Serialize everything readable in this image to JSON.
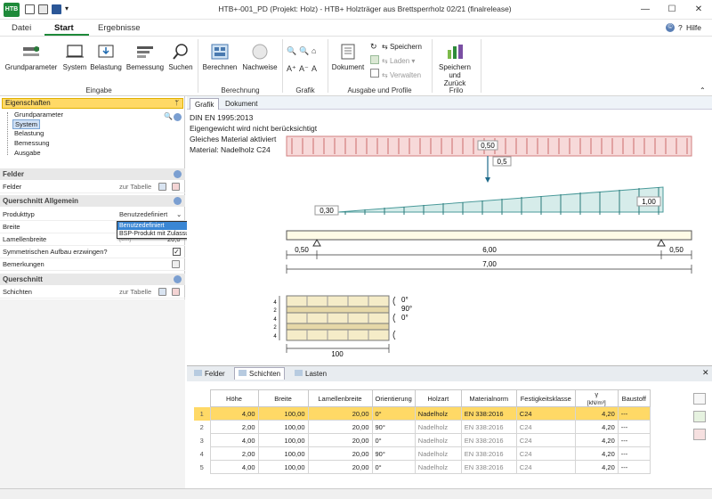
{
  "window": {
    "title": "HTB+-001_PD (Projekt: Holz) - HTB+ Holzträger aus Brettsperrholz 02/21 (finalrelease)",
    "app_logo": "HTB"
  },
  "menu": {
    "tabs": [
      "Datei",
      "Start",
      "Ergebnisse"
    ],
    "help": "Hilfe"
  },
  "ribbon": {
    "buttons": [
      "Grundparameter",
      "System",
      "Belastung",
      "Bemessung",
      "Suchen",
      "Berechnen",
      "Nachweise",
      "Dokument",
      "Speichern",
      "Laden",
      "Verwalten",
      "Speichern und Zurück"
    ],
    "groups": [
      "Eingabe",
      "Berechnung",
      "Grafik",
      "Ausgabe und Profile",
      "Frilo"
    ]
  },
  "left": {
    "header": "Eigenschaften",
    "tree": [
      "Grundparameter",
      "System",
      "Belastung",
      "Bemessung",
      "Ausgabe"
    ],
    "sections": {
      "felder": "Felder",
      "felder_row": "Felder",
      "felder_val": "zur Tabelle",
      "qa": "Querschnitt Allgemein",
      "produkttyp": "Produkttyp",
      "produkttyp_val": "Benutzedefiniert",
      "dropdown": [
        "Benutzedefiniert",
        "BSP-Produkt mit Zulassung"
      ],
      "breite": "Breite",
      "lamellenbreite": "Lamellenbreite",
      "lamellen_val": "20,0",
      "lamellen_unit": "[cm]",
      "sym": "Symmetrischen Aufbau erzwingen?",
      "bemerkungen": "Bemerkungen",
      "qs": "Querschnitt",
      "schichten": "Schichten",
      "schichten_val": "zur Tabelle"
    }
  },
  "right": {
    "tabs": [
      "Grafik",
      "Dokument"
    ],
    "info": [
      "DIN EN 1995:2013",
      "Eigengewicht wird nicht berücksichtigt",
      "Gleiches Material aktiviert",
      "Material: Nadelholz C24"
    ],
    "loads": {
      "top": "0,50",
      "point": "0,5",
      "trap_left": "0,30",
      "trap_right": "1,00"
    },
    "dims": {
      "left": "0,50",
      "mid": "6,00",
      "right": "0,50",
      "total": "7,00",
      "cs_width": "100"
    },
    "angles": [
      "0°",
      "90°",
      "0°"
    ],
    "side": [
      "4",
      "2",
      "4",
      "2",
      "4"
    ]
  },
  "bottom": {
    "tabs": [
      "Felder",
      "Schichten",
      "Lasten"
    ],
    "headers": [
      "Höhe",
      "Breite",
      "Lamellenbreite",
      "Orientierung",
      "Holzart",
      "Materialnorm",
      "Festigkeitsklasse",
      "γ",
      "Baustoff"
    ],
    "unit_gamma": "[kN/m³]",
    "rows": [
      {
        "n": "1",
        "h": "4,00",
        "b": "100,00",
        "l": "20,00",
        "o": "0°",
        "holz": "Nadelholz",
        "norm": "EN 338:2016",
        "fk": "C24",
        "g": "4,20",
        "bs": "---"
      },
      {
        "n": "2",
        "h": "2,00",
        "b": "100,00",
        "l": "20,00",
        "o": "90°",
        "holz": "Nadelholz",
        "norm": "EN 338:2016",
        "fk": "C24",
        "g": "4,20",
        "bs": "---"
      },
      {
        "n": "3",
        "h": "4,00",
        "b": "100,00",
        "l": "20,00",
        "o": "0°",
        "holz": "Nadelholz",
        "norm": "EN 338:2016",
        "fk": "C24",
        "g": "4,20",
        "bs": "---"
      },
      {
        "n": "4",
        "h": "2,00",
        "b": "100,00",
        "l": "20,00",
        "o": "90°",
        "holz": "Nadelholz",
        "norm": "EN 338:2016",
        "fk": "C24",
        "g": "4,20",
        "bs": "---"
      },
      {
        "n": "5",
        "h": "4,00",
        "b": "100,00",
        "l": "20,00",
        "o": "0°",
        "holz": "Nadelholz",
        "norm": "EN 338:2016",
        "fk": "C24",
        "g": "4,20",
        "bs": "---"
      }
    ]
  },
  "colors": {
    "accent": "#1e8a3a",
    "selected": "#ffd966",
    "load_red": "#f7d9d9",
    "load_teal": "#d6ecea"
  }
}
